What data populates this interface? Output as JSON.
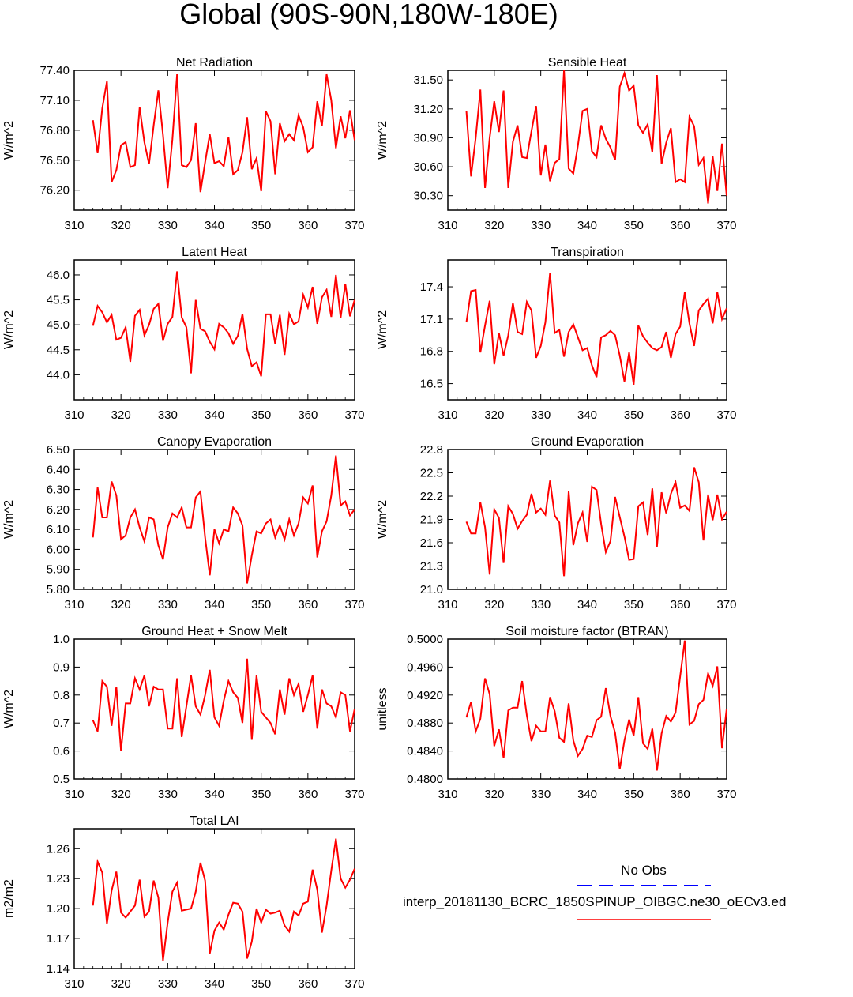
{
  "figure_title": "Global (90S-90N,180W-180E)",
  "legend": {
    "obs_label": "No Obs",
    "model_label": "interp_20181130_BCRC_1850SPINUP_OIBGC.ne30_oECv3.ed",
    "obs_color": "#0000ff",
    "model_color": "#ff0000"
  },
  "chart_data": [
    {
      "type": "line",
      "title": "Net Radiation",
      "ylabel": "W/m^2",
      "xlim": [
        310,
        370
      ],
      "ylim": [
        76.0,
        77.4
      ],
      "xticks": [
        310,
        320,
        330,
        340,
        350,
        360,
        370
      ],
      "yticks": [
        "76.20",
        "76.50",
        "76.80",
        "77.10",
        "77.40"
      ],
      "x_start": 314,
      "values": [
        76.9,
        76.57,
        77.02,
        77.29,
        76.28,
        76.4,
        76.65,
        76.68,
        76.43,
        76.45,
        77.03,
        76.68,
        76.46,
        76.85,
        77.2,
        76.75,
        76.22,
        76.71,
        77.36,
        76.45,
        76.43,
        76.5,
        76.87,
        76.18,
        76.48,
        76.76,
        76.47,
        76.49,
        76.44,
        76.73,
        76.36,
        76.4,
        76.58,
        76.93,
        76.41,
        76.52,
        76.19,
        76.99,
        76.89,
        76.36,
        76.87,
        76.69,
        76.76,
        76.7,
        76.95,
        76.83,
        76.58,
        76.63,
        77.09,
        76.84,
        77.36,
        77.1,
        76.62,
        76.94,
        76.72,
        77.0,
        76.7
      ]
    },
    {
      "type": "line",
      "title": "Sensible Heat",
      "ylabel": "W/m^2",
      "xlim": [
        310,
        370
      ],
      "ylim": [
        30.15,
        31.6
      ],
      "xticks": [
        310,
        320,
        330,
        340,
        350,
        360,
        370
      ],
      "yticks": [
        "30.30",
        "30.60",
        "30.90",
        "31.20",
        "31.50"
      ],
      "x_start": 314,
      "values": [
        31.18,
        30.5,
        30.9,
        31.4,
        30.38,
        30.9,
        31.28,
        30.96,
        31.39,
        30.38,
        30.86,
        31.03,
        30.7,
        30.69,
        30.97,
        31.23,
        30.51,
        30.83,
        30.45,
        30.64,
        30.68,
        31.6,
        30.58,
        30.53,
        30.82,
        31.18,
        31.2,
        30.76,
        30.7,
        31.03,
        30.89,
        30.8,
        30.67,
        31.43,
        31.57,
        31.39,
        31.44,
        31.03,
        30.95,
        31.04,
        30.75,
        31.55,
        30.63,
        30.85,
        31.0,
        30.44,
        30.47,
        30.44,
        31.12,
        31.02,
        30.62,
        30.69,
        30.22,
        30.71,
        30.35,
        30.84,
        30.3
      ]
    },
    {
      "type": "line",
      "title": "Latent Heat",
      "ylabel": "W/m^2",
      "xlim": [
        310,
        370
      ],
      "ylim": [
        43.5,
        46.3
      ],
      "xticks": [
        310,
        320,
        330,
        340,
        350,
        360,
        370
      ],
      "yticks": [
        "44.0",
        "44.5",
        "45.0",
        "45.5",
        "46.0"
      ],
      "x_start": 314,
      "values": [
        44.98,
        45.38,
        45.25,
        45.05,
        45.2,
        44.7,
        44.74,
        44.95,
        44.26,
        45.18,
        45.3,
        44.79,
        45.0,
        45.32,
        45.42,
        44.68,
        45.02,
        45.16,
        46.07,
        45.15,
        44.95,
        44.03,
        45.5,
        44.92,
        44.87,
        44.66,
        44.51,
        45.02,
        44.95,
        44.83,
        44.62,
        44.78,
        45.22,
        44.52,
        44.17,
        44.25,
        43.97,
        45.21,
        45.21,
        44.62,
        45.2,
        44.4,
        45.22,
        45.01,
        45.07,
        45.6,
        45.35,
        45.76,
        45.02,
        45.55,
        45.7,
        45.16,
        46.0,
        45.14,
        45.82,
        45.17,
        45.5
      ]
    },
    {
      "type": "line",
      "title": "Transpiration",
      "ylabel": "W/m^2",
      "xlim": [
        310,
        370
      ],
      "ylim": [
        16.35,
        17.65
      ],
      "xticks": [
        310,
        320,
        330,
        340,
        350,
        360,
        370
      ],
      "yticks": [
        "16.5",
        "16.8",
        "17.1",
        "17.4"
      ],
      "x_start": 314,
      "values": [
        17.07,
        17.36,
        17.37,
        16.79,
        17.04,
        17.27,
        16.68,
        16.97,
        16.76,
        16.95,
        17.25,
        16.98,
        16.96,
        17.26,
        17.18,
        16.74,
        16.85,
        17.07,
        17.53,
        16.97,
        17.0,
        16.75,
        16.98,
        17.05,
        16.93,
        16.81,
        16.83,
        16.67,
        16.56,
        16.93,
        16.95,
        16.99,
        16.95,
        16.76,
        16.52,
        16.79,
        16.49,
        17.04,
        16.94,
        16.88,
        16.83,
        16.81,
        16.84,
        16.98,
        16.74,
        16.96,
        17.03,
        17.35,
        17.06,
        16.85,
        17.18,
        17.24,
        17.29,
        17.06,
        17.35,
        17.1,
        17.2
      ]
    },
    {
      "type": "line",
      "title": "Canopy Evaporation",
      "ylabel": "W/m^2",
      "xlim": [
        310,
        370
      ],
      "ylim": [
        5.8,
        6.5
      ],
      "xticks": [
        310,
        320,
        330,
        340,
        350,
        360,
        370
      ],
      "yticks": [
        "5.80",
        "5.90",
        "6.00",
        "6.10",
        "6.20",
        "6.30",
        "6.40",
        "6.50"
      ],
      "x_start": 314,
      "values": [
        6.06,
        6.31,
        6.16,
        6.16,
        6.34,
        6.27,
        6.05,
        6.07,
        6.16,
        6.2,
        6.11,
        6.04,
        6.16,
        6.15,
        6.02,
        5.95,
        6.11,
        6.18,
        6.16,
        6.21,
        6.11,
        6.11,
        6.26,
        6.29,
        6.06,
        5.87,
        6.1,
        6.03,
        6.1,
        6.09,
        6.21,
        6.18,
        6.12,
        5.83,
        5.97,
        6.09,
        6.08,
        6.13,
        6.15,
        6.06,
        6.12,
        6.05,
        6.15,
        6.07,
        6.13,
        6.26,
        6.23,
        6.32,
        5.96,
        6.09,
        6.14,
        6.27,
        6.47,
        6.22,
        6.24,
        6.17,
        6.2
      ]
    },
    {
      "type": "line",
      "title": "Ground Evaporation",
      "ylabel": "W/m^2",
      "xlim": [
        310,
        370
      ],
      "ylim": [
        21.0,
        22.8
      ],
      "xticks": [
        310,
        320,
        330,
        340,
        350,
        360,
        370
      ],
      "yticks": [
        "21.0",
        "21.3",
        "21.6",
        "21.9",
        "22.2",
        "22.5",
        "22.8"
      ],
      "x_start": 314,
      "values": [
        21.87,
        21.72,
        21.72,
        22.12,
        21.8,
        21.19,
        22.03,
        21.92,
        21.34,
        22.07,
        21.97,
        21.78,
        21.88,
        21.96,
        22.23,
        21.99,
        22.04,
        21.96,
        22.4,
        21.95,
        21.86,
        21.17,
        22.26,
        21.57,
        21.85,
        21.99,
        21.61,
        22.32,
        22.28,
        21.84,
        21.48,
        21.62,
        22.19,
        21.93,
        21.68,
        21.38,
        21.39,
        22.07,
        22.12,
        21.7,
        22.3,
        21.55,
        22.25,
        21.98,
        22.23,
        22.38,
        22.05,
        22.08,
        22.01,
        22.57,
        22.38,
        21.63,
        22.22,
        21.89,
        22.22,
        21.9,
        22.0
      ]
    },
    {
      "type": "line",
      "title": "Ground Heat + Snow Melt",
      "ylabel": "W/m^2",
      "xlim": [
        310,
        370
      ],
      "ylim": [
        0.5,
        1.0
      ],
      "xticks": [
        310,
        320,
        330,
        340,
        350,
        360,
        370
      ],
      "yticks": [
        "0.5",
        "0.6",
        "0.7",
        "0.8",
        "0.9",
        "1.0"
      ],
      "x_start": 314,
      "values": [
        0.71,
        0.67,
        0.85,
        0.83,
        0.69,
        0.83,
        0.6,
        0.77,
        0.77,
        0.86,
        0.82,
        0.87,
        0.76,
        0.83,
        0.82,
        0.82,
        0.68,
        0.68,
        0.86,
        0.65,
        0.76,
        0.87,
        0.76,
        0.73,
        0.8,
        0.89,
        0.72,
        0.69,
        0.78,
        0.85,
        0.81,
        0.79,
        0.7,
        0.93,
        0.64,
        0.87,
        0.74,
        0.72,
        0.7,
        0.66,
        0.82,
        0.73,
        0.86,
        0.8,
        0.84,
        0.74,
        0.8,
        0.87,
        0.68,
        0.82,
        0.77,
        0.76,
        0.72,
        0.81,
        0.8,
        0.67,
        0.75
      ]
    },
    {
      "type": "line",
      "title": "Soil moisture factor (BTRAN)",
      "ylabel": "unitless",
      "xlim": [
        310,
        370
      ],
      "ylim": [
        0.48,
        0.5
      ],
      "xticks": [
        310,
        320,
        330,
        340,
        350,
        360,
        370
      ],
      "yticks": [
        "0.4800",
        "0.4840",
        "0.4880",
        "0.4920",
        "0.4960",
        "0.5000"
      ],
      "x_start": 314,
      "values": [
        0.4888,
        0.491,
        0.4868,
        0.4886,
        0.4944,
        0.4921,
        0.4847,
        0.4871,
        0.483,
        0.4898,
        0.4902,
        0.4902,
        0.494,
        0.4891,
        0.4854,
        0.4876,
        0.4868,
        0.4868,
        0.4917,
        0.4897,
        0.4859,
        0.4853,
        0.4908,
        0.4855,
        0.4833,
        0.4843,
        0.4862,
        0.486,
        0.4884,
        0.4889,
        0.493,
        0.489,
        0.4866,
        0.4814,
        0.4855,
        0.4885,
        0.4862,
        0.4917,
        0.4851,
        0.4843,
        0.4872,
        0.4812,
        0.4865,
        0.489,
        0.4882,
        0.4895,
        0.4947,
        0.4998,
        0.4878,
        0.4883,
        0.4907,
        0.4913,
        0.4951,
        0.4933,
        0.4961,
        0.4844,
        0.49
      ]
    },
    {
      "type": "line",
      "title": "Total LAI",
      "ylabel": "m2/m2",
      "xlim": [
        310,
        370
      ],
      "ylim": [
        1.14,
        1.28
      ],
      "xticks": [
        310,
        320,
        330,
        340,
        350,
        360,
        370
      ],
      "yticks": [
        "1.14",
        "1.17",
        "1.20",
        "1.23",
        "1.26"
      ],
      "x_start": 314,
      "values": [
        1.203,
        1.247,
        1.236,
        1.185,
        1.218,
        1.237,
        1.196,
        1.191,
        1.197,
        1.203,
        1.229,
        1.192,
        1.197,
        1.228,
        1.211,
        1.148,
        1.186,
        1.217,
        1.226,
        1.198,
        1.199,
        1.2,
        1.217,
        1.246,
        1.228,
        1.155,
        1.178,
        1.186,
        1.179,
        1.194,
        1.206,
        1.205,
        1.197,
        1.15,
        1.167,
        1.2,
        1.186,
        1.199,
        1.195,
        1.196,
        1.198,
        1.183,
        1.177,
        1.197,
        1.193,
        1.205,
        1.207,
        1.239,
        1.219,
        1.176,
        1.203,
        1.238,
        1.27,
        1.23,
        1.221,
        1.229,
        1.24
      ]
    }
  ]
}
